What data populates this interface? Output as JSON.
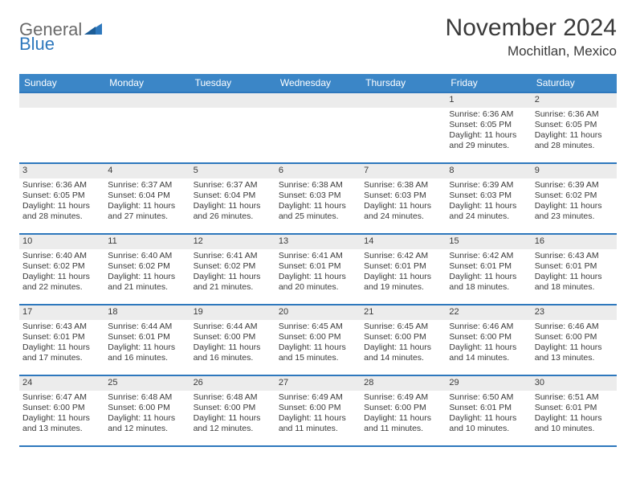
{
  "logo": {
    "part1": "General",
    "part2": "Blue"
  },
  "title": "November 2024",
  "location": "Mochitlan, Mexico",
  "colors": {
    "header_bg": "#3b86c7",
    "header_text": "#ffffff",
    "border": "#2e78bd",
    "daynum_bg": "#ececec",
    "text": "#3a3a3a",
    "logo_gray": "#6a6a6a",
    "logo_blue": "#2e78bd"
  },
  "day_names": [
    "Sunday",
    "Monday",
    "Tuesday",
    "Wednesday",
    "Thursday",
    "Friday",
    "Saturday"
  ],
  "weeks": [
    [
      {
        "num": "",
        "sunrise": "",
        "sunset": "",
        "daylight": ""
      },
      {
        "num": "",
        "sunrise": "",
        "sunset": "",
        "daylight": ""
      },
      {
        "num": "",
        "sunrise": "",
        "sunset": "",
        "daylight": ""
      },
      {
        "num": "",
        "sunrise": "",
        "sunset": "",
        "daylight": ""
      },
      {
        "num": "",
        "sunrise": "",
        "sunset": "",
        "daylight": ""
      },
      {
        "num": "1",
        "sunrise": "Sunrise: 6:36 AM",
        "sunset": "Sunset: 6:05 PM",
        "daylight": "Daylight: 11 hours and 29 minutes."
      },
      {
        "num": "2",
        "sunrise": "Sunrise: 6:36 AM",
        "sunset": "Sunset: 6:05 PM",
        "daylight": "Daylight: 11 hours and 28 minutes."
      }
    ],
    [
      {
        "num": "3",
        "sunrise": "Sunrise: 6:36 AM",
        "sunset": "Sunset: 6:05 PM",
        "daylight": "Daylight: 11 hours and 28 minutes."
      },
      {
        "num": "4",
        "sunrise": "Sunrise: 6:37 AM",
        "sunset": "Sunset: 6:04 PM",
        "daylight": "Daylight: 11 hours and 27 minutes."
      },
      {
        "num": "5",
        "sunrise": "Sunrise: 6:37 AM",
        "sunset": "Sunset: 6:04 PM",
        "daylight": "Daylight: 11 hours and 26 minutes."
      },
      {
        "num": "6",
        "sunrise": "Sunrise: 6:38 AM",
        "sunset": "Sunset: 6:03 PM",
        "daylight": "Daylight: 11 hours and 25 minutes."
      },
      {
        "num": "7",
        "sunrise": "Sunrise: 6:38 AM",
        "sunset": "Sunset: 6:03 PM",
        "daylight": "Daylight: 11 hours and 24 minutes."
      },
      {
        "num": "8",
        "sunrise": "Sunrise: 6:39 AM",
        "sunset": "Sunset: 6:03 PM",
        "daylight": "Daylight: 11 hours and 24 minutes."
      },
      {
        "num": "9",
        "sunrise": "Sunrise: 6:39 AM",
        "sunset": "Sunset: 6:02 PM",
        "daylight": "Daylight: 11 hours and 23 minutes."
      }
    ],
    [
      {
        "num": "10",
        "sunrise": "Sunrise: 6:40 AM",
        "sunset": "Sunset: 6:02 PM",
        "daylight": "Daylight: 11 hours and 22 minutes."
      },
      {
        "num": "11",
        "sunrise": "Sunrise: 6:40 AM",
        "sunset": "Sunset: 6:02 PM",
        "daylight": "Daylight: 11 hours and 21 minutes."
      },
      {
        "num": "12",
        "sunrise": "Sunrise: 6:41 AM",
        "sunset": "Sunset: 6:02 PM",
        "daylight": "Daylight: 11 hours and 21 minutes."
      },
      {
        "num": "13",
        "sunrise": "Sunrise: 6:41 AM",
        "sunset": "Sunset: 6:01 PM",
        "daylight": "Daylight: 11 hours and 20 minutes."
      },
      {
        "num": "14",
        "sunrise": "Sunrise: 6:42 AM",
        "sunset": "Sunset: 6:01 PM",
        "daylight": "Daylight: 11 hours and 19 minutes."
      },
      {
        "num": "15",
        "sunrise": "Sunrise: 6:42 AM",
        "sunset": "Sunset: 6:01 PM",
        "daylight": "Daylight: 11 hours and 18 minutes."
      },
      {
        "num": "16",
        "sunrise": "Sunrise: 6:43 AM",
        "sunset": "Sunset: 6:01 PM",
        "daylight": "Daylight: 11 hours and 18 minutes."
      }
    ],
    [
      {
        "num": "17",
        "sunrise": "Sunrise: 6:43 AM",
        "sunset": "Sunset: 6:01 PM",
        "daylight": "Daylight: 11 hours and 17 minutes."
      },
      {
        "num": "18",
        "sunrise": "Sunrise: 6:44 AM",
        "sunset": "Sunset: 6:01 PM",
        "daylight": "Daylight: 11 hours and 16 minutes."
      },
      {
        "num": "19",
        "sunrise": "Sunrise: 6:44 AM",
        "sunset": "Sunset: 6:00 PM",
        "daylight": "Daylight: 11 hours and 16 minutes."
      },
      {
        "num": "20",
        "sunrise": "Sunrise: 6:45 AM",
        "sunset": "Sunset: 6:00 PM",
        "daylight": "Daylight: 11 hours and 15 minutes."
      },
      {
        "num": "21",
        "sunrise": "Sunrise: 6:45 AM",
        "sunset": "Sunset: 6:00 PM",
        "daylight": "Daylight: 11 hours and 14 minutes."
      },
      {
        "num": "22",
        "sunrise": "Sunrise: 6:46 AM",
        "sunset": "Sunset: 6:00 PM",
        "daylight": "Daylight: 11 hours and 14 minutes."
      },
      {
        "num": "23",
        "sunrise": "Sunrise: 6:46 AM",
        "sunset": "Sunset: 6:00 PM",
        "daylight": "Daylight: 11 hours and 13 minutes."
      }
    ],
    [
      {
        "num": "24",
        "sunrise": "Sunrise: 6:47 AM",
        "sunset": "Sunset: 6:00 PM",
        "daylight": "Daylight: 11 hours and 13 minutes."
      },
      {
        "num": "25",
        "sunrise": "Sunrise: 6:48 AM",
        "sunset": "Sunset: 6:00 PM",
        "daylight": "Daylight: 11 hours and 12 minutes."
      },
      {
        "num": "26",
        "sunrise": "Sunrise: 6:48 AM",
        "sunset": "Sunset: 6:00 PM",
        "daylight": "Daylight: 11 hours and 12 minutes."
      },
      {
        "num": "27",
        "sunrise": "Sunrise: 6:49 AM",
        "sunset": "Sunset: 6:00 PM",
        "daylight": "Daylight: 11 hours and 11 minutes."
      },
      {
        "num": "28",
        "sunrise": "Sunrise: 6:49 AM",
        "sunset": "Sunset: 6:00 PM",
        "daylight": "Daylight: 11 hours and 11 minutes."
      },
      {
        "num": "29",
        "sunrise": "Sunrise: 6:50 AM",
        "sunset": "Sunset: 6:01 PM",
        "daylight": "Daylight: 11 hours and 10 minutes."
      },
      {
        "num": "30",
        "sunrise": "Sunrise: 6:51 AM",
        "sunset": "Sunset: 6:01 PM",
        "daylight": "Daylight: 11 hours and 10 minutes."
      }
    ]
  ]
}
